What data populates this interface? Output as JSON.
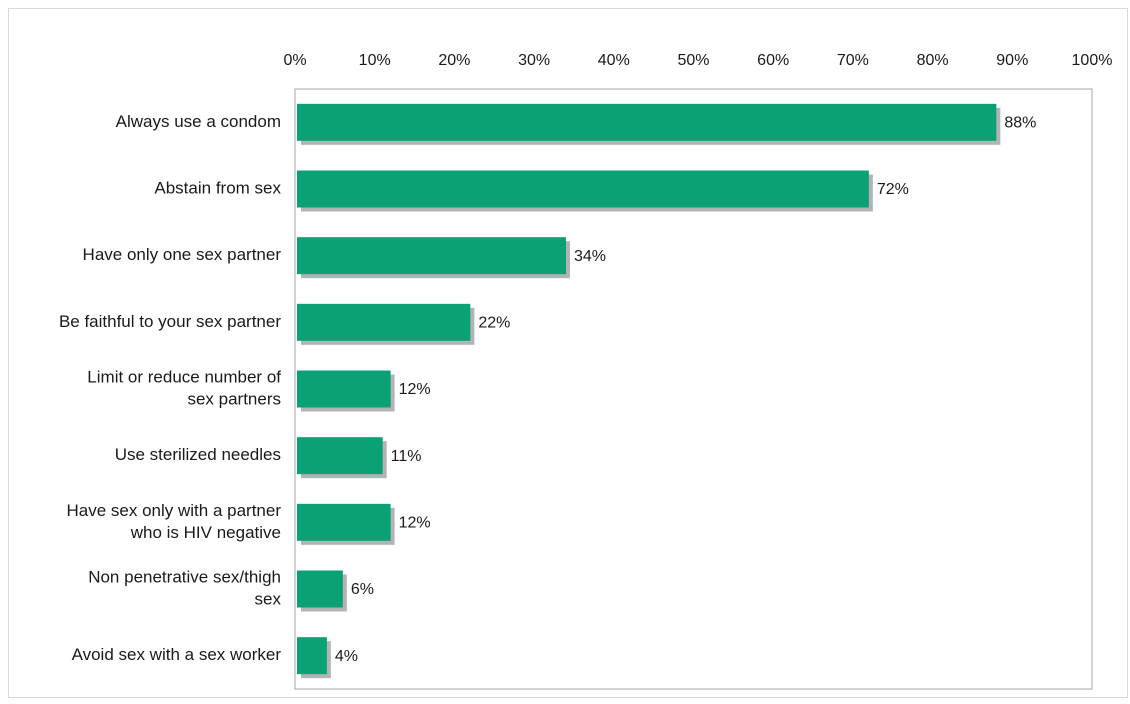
{
  "chart_data": {
    "type": "bar",
    "orientation": "horizontal",
    "categories": [
      "Always use a condom",
      "Abstain from sex",
      "Have only one sex partner",
      "Be faithful to your sex partner",
      "Limit or reduce number of sex partners",
      "Use sterilized needles",
      "Have sex only with a partner who is HIV negative",
      "Non penetrative sex/thigh sex",
      "Avoid sex with a sex worker"
    ],
    "category_lines": [
      [
        "Always use a condom"
      ],
      [
        "Abstain from sex"
      ],
      [
        "Have only one sex partner"
      ],
      [
        "Be faithful to your sex partner"
      ],
      [
        "Limit or reduce number of",
        "sex partners"
      ],
      [
        "Use sterilized needles"
      ],
      [
        "Have sex only with a partner",
        "who is HIV negative"
      ],
      [
        "Non penetrative sex/thigh",
        "sex"
      ],
      [
        "Avoid sex with a sex worker"
      ]
    ],
    "values": [
      88,
      72,
      34,
      22,
      12,
      11,
      12,
      6,
      4
    ],
    "value_labels": [
      "88%",
      "72%",
      "34%",
      "22%",
      "12%",
      "11%",
      "12%",
      "6%",
      "4%"
    ],
    "xlim": [
      0,
      100
    ],
    "x_ticks": [
      0,
      10,
      20,
      30,
      40,
      50,
      60,
      70,
      80,
      90,
      100
    ],
    "x_tick_labels": [
      "0%",
      "10%",
      "20%",
      "30%",
      "40%",
      "50%",
      "60%",
      "70%",
      "80%",
      "90%",
      "100%"
    ],
    "x_axis_position": "top",
    "title": "",
    "xlabel": "",
    "ylabel": "",
    "grid": false,
    "legend": "none",
    "bar_color": "#0aa275",
    "bar_shadow_color": "#b3b3b3",
    "axis_color": "#a6a6a6"
  }
}
